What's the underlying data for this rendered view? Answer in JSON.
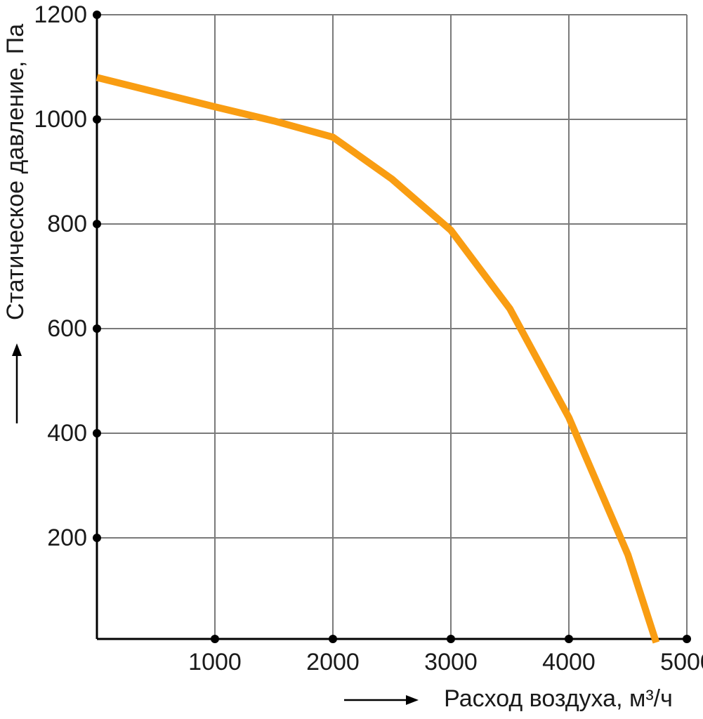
{
  "chart_data": {
    "type": "line",
    "x_label": "Расход воздуха, м³/ч",
    "y_label": "Статическое давление, Па",
    "series": [
      {
        "name": null,
        "color": "#f99d12",
        "x": [
          0,
          1000,
          1500,
          2000,
          2500,
          3000,
          3500,
          4000,
          4500,
          4740
        ],
        "values": [
          1080,
          1024,
          997,
          966,
          886,
          788,
          638,
          430,
          168,
          0
        ]
      }
    ],
    "xlim": [
      0,
      5000
    ],
    "xticks": [
      1000,
      2000,
      3000,
      4000,
      5000
    ],
    "ylim": [
      0,
      1200
    ],
    "yticks": [
      200,
      400,
      600,
      800,
      1000,
      1200
    ],
    "grid": true
  }
}
